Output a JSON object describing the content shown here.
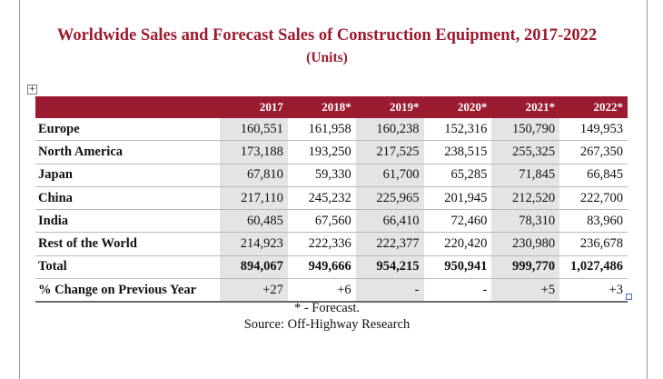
{
  "title": "Worldwide Sales and Forecast Sales of Construction Equipment, 2017-2022",
  "subtitle": "(Units)",
  "table": {
    "headers": [
      "",
      "2017",
      "2018*",
      "2019*",
      "2020*",
      "2021*",
      "2022*"
    ],
    "rows": [
      {
        "label": "Europe",
        "values": [
          "160,551",
          "161,958",
          "160,238",
          "152,316",
          "150,790",
          "149,953"
        ]
      },
      {
        "label": "North America",
        "values": [
          "173,188",
          "193,250",
          "217,525",
          "238,515",
          "255,325",
          "267,350"
        ]
      },
      {
        "label": "Japan",
        "values": [
          "67,810",
          "59,330",
          "61,700",
          "65,285",
          "71,845",
          "66,845"
        ]
      },
      {
        "label": "China",
        "values": [
          "217,110",
          "245,232",
          "225,965",
          "201,945",
          "212,520",
          "222,700"
        ]
      },
      {
        "label": "India",
        "values": [
          "60,485",
          "67,560",
          "66,410",
          "72,460",
          "78,310",
          "83,960"
        ]
      },
      {
        "label": "Rest of the World",
        "values": [
          "214,923",
          "222,336",
          "222,377",
          "220,420",
          "230,980",
          "236,678"
        ]
      },
      {
        "label": "Total",
        "values": [
          "894,067",
          "949,666",
          "954,215",
          "950,941",
          "999,770",
          "1,027,486"
        ]
      },
      {
        "label": "% Change on Previous Year",
        "values": [
          "+27",
          "+6",
          "-",
          "-",
          "+5",
          "+3"
        ]
      }
    ]
  },
  "footnote": "* - Forecast.",
  "source": "Source: Off-Highway Research",
  "colors": {
    "accent": "#9b1b30",
    "shade": "#e4e4e4"
  },
  "icons": {
    "table_handle": "move-cross-icon",
    "resize_handle": "resize-square-icon"
  }
}
